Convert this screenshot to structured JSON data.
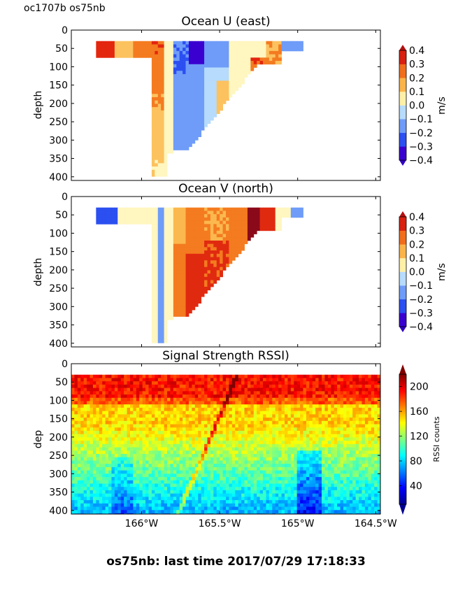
{
  "header": {
    "cruise_label": "oc1707b os75nb"
  },
  "footer": {
    "last_time_label": "os75nb: last time 2017/07/29 17:18:33"
  },
  "chart_data": [
    {
      "type": "heatmap",
      "title": "Ocean U (east)",
      "ylabel": "depth",
      "ylim": [
        410,
        0
      ],
      "xlim": [
        -166.45,
        -164.47
      ],
      "y_ticks": [
        "0",
        "50",
        "100",
        "150",
        "200",
        "250",
        "300",
        "350",
        "400"
      ],
      "colorbar": {
        "label": "m/s",
        "range": [
          -0.4,
          0.4
        ],
        "ticks": [
          "0.4",
          "0.3",
          "0.2",
          "0.1",
          "0.0",
          "−0.1",
          "−0.2",
          "−0.3",
          "−0.4"
        ]
      },
      "colors": [
        "#2b12e0",
        "#4a5cf2",
        "#8ab7fb",
        "#d4ecfd",
        "#fffbd0",
        "#fcc25f",
        "#f47b20",
        "#e3260e"
      ]
    },
    {
      "type": "heatmap",
      "title": "Ocean V (north)",
      "ylabel": "depth",
      "ylim": [
        410,
        0
      ],
      "xlim": [
        -166.45,
        -164.47
      ],
      "y_ticks": [
        "0",
        "50",
        "100",
        "150",
        "200",
        "250",
        "300",
        "350",
        "400"
      ],
      "colorbar": {
        "label": "m/s",
        "range": [
          -0.4,
          0.4
        ],
        "ticks": [
          "0.4",
          "0.3",
          "0.2",
          "0.1",
          "0.0",
          "−0.1",
          "−0.2",
          "−0.3",
          "−0.4"
        ]
      },
      "colors": [
        "#2b12e0",
        "#4a5cf2",
        "#8ab7fb",
        "#d4ecfd",
        "#fffbd0",
        "#fcc25f",
        "#f47b20",
        "#e3260e",
        "#8b0a1a"
      ]
    },
    {
      "type": "heatmap",
      "title": "Signal Strength RSSI)",
      "ylabel": "dep",
      "ylim": [
        410,
        0
      ],
      "xlim": [
        -166.45,
        -164.47
      ],
      "y_ticks": [
        "0",
        "50",
        "100",
        "150",
        "200",
        "250",
        "300",
        "350",
        "400"
      ],
      "x_ticks": [
        {
          "value": -166.0,
          "label": "166°W"
        },
        {
          "value": -165.5,
          "label": "165.5°W"
        },
        {
          "value": -165.0,
          "label": "165°W"
        },
        {
          "value": -164.5,
          "label": "164.5°W"
        }
      ],
      "colorbar": {
        "label": "RSSI counts",
        "range": [
          10,
          220
        ],
        "ticks": [
          "200",
          "160",
          "120",
          "80",
          "40"
        ]
      }
    }
  ]
}
